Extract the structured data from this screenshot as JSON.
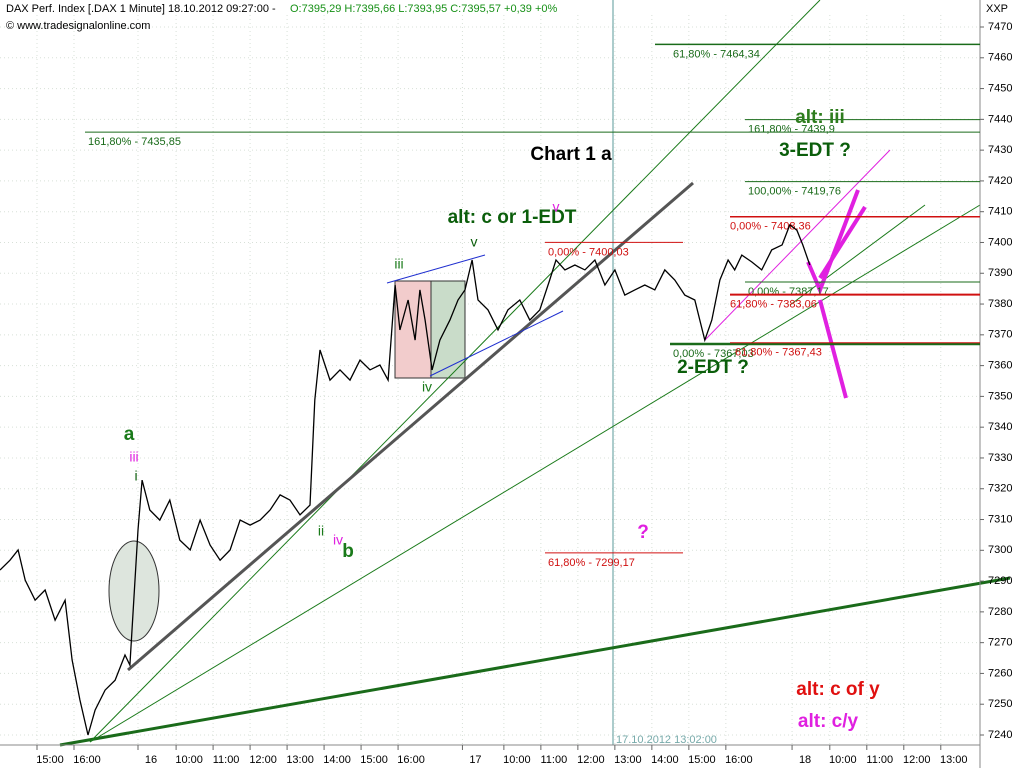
{
  "chart_data": {
    "type": "line",
    "header": "DAX Perf. Index [.DAX  1 Minute] 18.10.2012 09:27:00 -",
    "ohlc": "O:7395,29 H:7395,66 L:7393,95 C:7395,57 +0,39 +0%",
    "source": "© www.tradesignalonline.com",
    "axis_code": "XXP",
    "cursor_label": "17.10.2012 13:02:00",
    "x": [
      0,
      0.27,
      0.49,
      0.68,
      0.95,
      1.22,
      1.49,
      1.76,
      1.95,
      2.16,
      2.38,
      2.57,
      2.84,
      3.11,
      3.38,
      3.51,
      3.73,
      3.84,
      4.05,
      4.32,
      4.59,
      4.86,
      5.14,
      5.41,
      5.68,
      5.95,
      6.22,
      6.49,
      6.76,
      7.03,
      7.3,
      7.57,
      7.84,
      8.11,
      8.38,
      8.51,
      8.65,
      8.92,
      9.19,
      9.46,
      9.73,
      10.0,
      10.27,
      10.49,
      10.68,
      10.81,
      11.03,
      11.22,
      11.35,
      11.49,
      11.68,
      11.89,
      12.16,
      12.38,
      12.57,
      12.76,
      12.92,
      13.19,
      13.46,
      13.73,
      14.05,
      14.32,
      14.59,
      14.86,
      15.03,
      15.27,
      15.54,
      15.81,
      16.08,
      16.35,
      16.62,
      16.89,
      17.16,
      17.43,
      17.7,
      17.97,
      18.24,
      18.51,
      18.78,
      19.05,
      19.24,
      19.46,
      19.68,
      19.86,
      20.05,
      20.32,
      20.59,
      20.86,
      21.14,
      21.35,
      21.54,
      21.7,
      21.89
    ],
    "series": [
      {
        "color": "#000000",
        "values": [
          7293.6,
          7296.8,
          7300.1,
          7290.3,
          7283.8,
          7287.1,
          7277.3,
          7283.8,
          7264.4,
          7251.4,
          7240.0,
          7248.1,
          7254.6,
          7257.8,
          7266.0,
          7262.7,
          7306.6,
          7322.8,
          7313.1,
          7309.8,
          7316.3,
          7303.3,
          7300.1,
          7309.8,
          7301.7,
          7296.8,
          7300.1,
          7309.8,
          7308.2,
          7309.8,
          7313.1,
          7318.0,
          7316.3,
          7311.5,
          7314.7,
          7348.8,
          7365.1,
          7355.3,
          7358.6,
          7355.3,
          7361.8,
          7358.6,
          7360.2,
          7355.3,
          7386.2,
          7371.6,
          7381.3,
          7368.3,
          7384.6,
          7374.8,
          7358.6,
          7368.3,
          7374.8,
          7381.3,
          7384.6,
          7394.3,
          7381.3,
          7378.1,
          7371.6,
          7378.1,
          7381.3,
          7374.8,
          7378.1,
          7387.8,
          7394.3,
          7391.1,
          7392.7,
          7391.1,
          7394.3,
          7386.2,
          7391.1,
          7382.9,
          7384.6,
          7386.2,
          7384.6,
          7391.1,
          7387.8,
          7382.9,
          7381.3,
          7368.3,
          7374.8,
          7387.8,
          7394.3,
          7391.1,
          7395.9,
          7393.7,
          7391.1,
          7397.6,
          7399.2,
          7405.7,
          7404.0,
          7399.2,
          7392.7
        ]
      }
    ],
    "xlim": [
      0,
      26.49
    ],
    "ylim": [
      7236.75,
      7473.9
    ],
    "xticks": [
      {
        "value": 1.0,
        "label": "15:00"
      },
      {
        "value": 2.0,
        "label": "16:00"
      },
      {
        "value": 3.73,
        "label": "16"
      },
      {
        "value": 4.76,
        "label": "10:00"
      },
      {
        "value": 5.76,
        "label": "11:00"
      },
      {
        "value": 6.76,
        "label": "12:00"
      },
      {
        "value": 7.76,
        "label": "13:00"
      },
      {
        "value": 8.76,
        "label": "14:00"
      },
      {
        "value": 9.76,
        "label": "15:00"
      },
      {
        "value": 10.76,
        "label": "16:00"
      },
      {
        "value": 12.5,
        "label": "17"
      },
      {
        "value": 13.62,
        "label": "10:00"
      },
      {
        "value": 14.62,
        "label": "11:00"
      },
      {
        "value": 15.62,
        "label": "12:00"
      },
      {
        "value": 16.62,
        "label": "13:00"
      },
      {
        "value": 17.62,
        "label": "14:00"
      },
      {
        "value": 18.62,
        "label": "15:00"
      },
      {
        "value": 19.62,
        "label": "16:00"
      },
      {
        "value": 21.41,
        "label": "18"
      },
      {
        "value": 22.43,
        "label": "10:00"
      },
      {
        "value": 23.43,
        "label": "11:00"
      },
      {
        "value": 24.43,
        "label": "12:00"
      },
      {
        "value": 25.43,
        "label": "13:00"
      }
    ],
    "yticks": [
      7240,
      7250,
      7260,
      7270,
      7280,
      7290,
      7300,
      7310,
      7320,
      7330,
      7340,
      7350,
      7360,
      7370,
      7380,
      7390,
      7400,
      7410,
      7420,
      7430,
      7440,
      7450,
      7460,
      7470
    ],
    "grid": true,
    "levels": [
      {
        "value": 7464.34,
        "label": "61,80% - 7464,34",
        "color": "#1a6b1a"
      },
      {
        "value": 7435.85,
        "label": "161,80% - 7435,85",
        "color": "#1a6b1a"
      },
      {
        "value": 7439.9,
        "label": "161,80% - 7439,9",
        "color": "#1a6b1a"
      },
      {
        "value": 7419.76,
        "label": "100,00% - 7419,76",
        "color": "#1a6b1a"
      },
      {
        "value": 7408.36,
        "label": "0,00% - 7408,36",
        "color": "#d01010"
      },
      {
        "value": 7400.03,
        "label": "0,00% - 7400,03",
        "color": "#d01010"
      },
      {
        "value": 7387.17,
        "label": "0,00% - 7387,17",
        "color": "#1a6b1a"
      },
      {
        "value": 7383.06,
        "label": "61,80% - 7383,06",
        "color": "#d01010"
      },
      {
        "value": 7367.03,
        "label": "0,00% - 7367,03",
        "color": "#1a6b1a"
      },
      {
        "value": 7367.43,
        "label": "61,80% - 7367,43",
        "color": "#d01010"
      },
      {
        "value": 7299.17,
        "label": "61,80% - 7299,17",
        "color": "#d01010"
      }
    ],
    "annotations": [
      {
        "text": "Chart 1 a",
        "color": "#000000"
      },
      {
        "text": "alt: c or 1-EDT",
        "color": "#0b5e0b"
      },
      {
        "text": "alt: iii",
        "color": "#2e7d1e"
      },
      {
        "text": "3-EDT ?",
        "color": "#0b5e0b"
      },
      {
        "text": "2-EDT ?",
        "color": "#0b5e0b"
      },
      {
        "text": "alt: c of y",
        "color": "#e01010"
      },
      {
        "text": "alt: c/y",
        "color": "#e020e0"
      },
      {
        "text": "a",
        "color": "#1a7a1a"
      },
      {
        "text": "iii",
        "color": "#e020e0"
      },
      {
        "text": "i",
        "color": "#0b5e0b"
      },
      {
        "text": "ii",
        "color": "#1a7a1a"
      },
      {
        "text": "iv",
        "color": "#e020e0"
      },
      {
        "text": "b",
        "color": "#1a7a1a"
      },
      {
        "text": "iii",
        "color": "#1a7a1a"
      },
      {
        "text": "iv",
        "color": "#1a7a1a"
      },
      {
        "text": "v",
        "color": "#0b5e0b"
      },
      {
        "text": "v",
        "color": "#e020e0"
      },
      {
        "text": "?",
        "color": "#e020e0"
      }
    ]
  }
}
